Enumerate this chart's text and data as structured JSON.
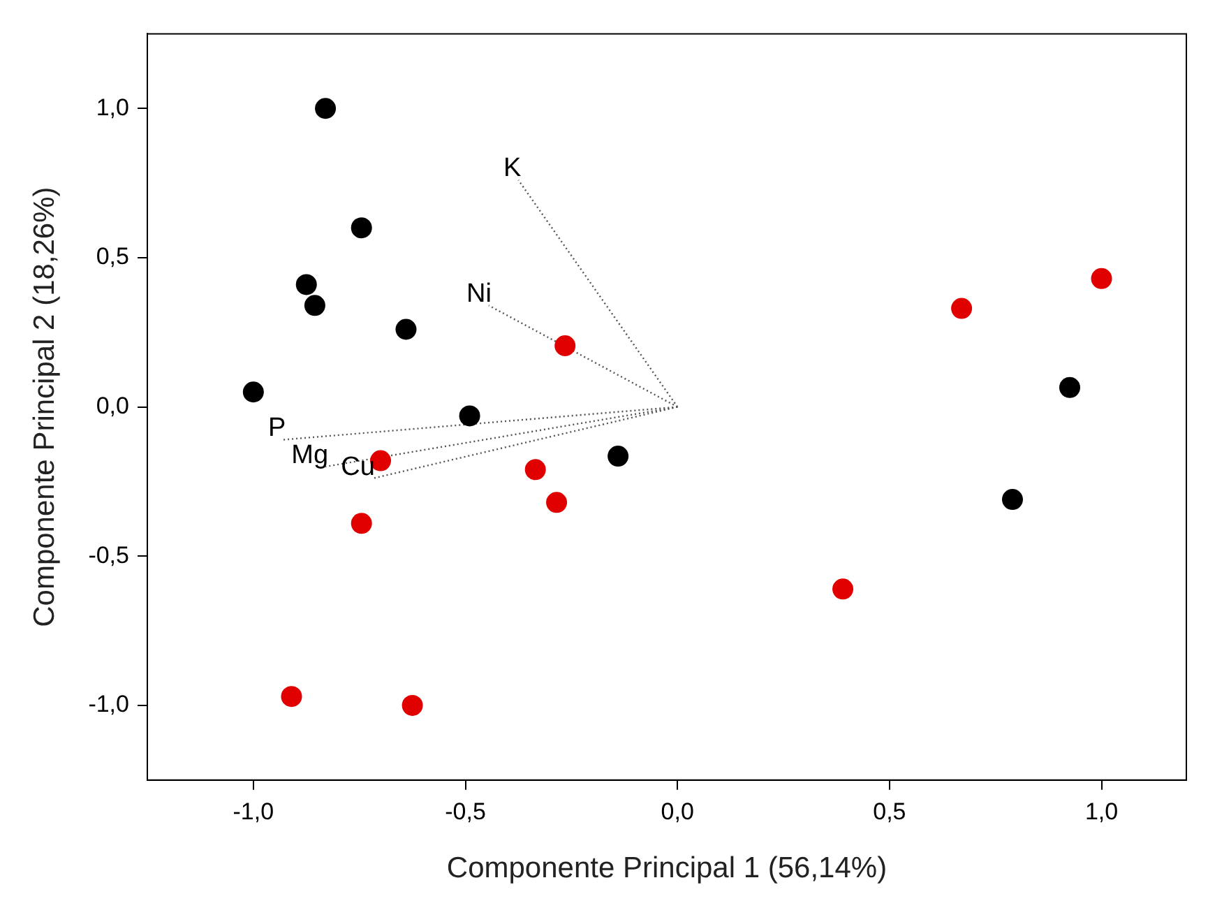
{
  "chart_data": {
    "type": "scatter",
    "xlabel": "Componente Principal 1 (56,14%)",
    "ylabel": "Componente Principal 2 (18,26%)",
    "xlim": [
      -1.25,
      1.2
    ],
    "ylim": [
      -1.25,
      1.25
    ],
    "xticks": [
      {
        "value": -1,
        "label": "-1,0"
      },
      {
        "value": -0.5,
        "label": "-0,5"
      },
      {
        "value": 0,
        "label": "0,0"
      },
      {
        "value": 0.5,
        "label": "0,5"
      },
      {
        "value": 1,
        "label": "1,0"
      }
    ],
    "yticks": [
      {
        "value": -1,
        "label": "-1,0"
      },
      {
        "value": -0.5,
        "label": "-0,5"
      },
      {
        "value": 0,
        "label": "0,0"
      },
      {
        "value": 0.5,
        "label": "0,5"
      },
      {
        "value": 1,
        "label": "1,0"
      }
    ],
    "grid": false,
    "marker": "circle",
    "series": [
      {
        "color": "#000000",
        "x": [
          -0.83,
          -0.745,
          -0.875,
          -0.855,
          -0.64,
          -1.0,
          -0.49,
          -0.14,
          0.925,
          0.79
        ],
        "values": [
          1.0,
          0.6,
          0.41,
          0.34,
          0.26,
          0.05,
          -0.03,
          -0.165,
          0.065,
          -0.31
        ]
      },
      {
        "color": "#e00000",
        "x": [
          -0.265,
          -0.7,
          -0.335,
          -0.285,
          -0.745,
          -0.91,
          -0.625,
          0.67,
          1.0,
          0.39
        ],
        "values": [
          0.205,
          -0.18,
          -0.21,
          -0.32,
          -0.39,
          -0.97,
          -1.0,
          0.33,
          0.43,
          -0.61
        ]
      },
      {
        "type": "line",
        "name": "K",
        "color": "#555555",
        "line_style": "dotted",
        "marker": "none",
        "x": [
          0,
          -0.375
        ],
        "values": [
          0,
          0.76
        ]
      },
      {
        "type": "line",
        "name": "Ni",
        "color": "#555555",
        "line_style": "dotted",
        "marker": "none",
        "x": [
          0,
          -0.445
        ],
        "values": [
          0,
          0.34
        ]
      },
      {
        "type": "line",
        "name": "P",
        "color": "#555555",
        "line_style": "dotted",
        "marker": "none",
        "x": [
          0,
          -0.93
        ],
        "values": [
          0,
          -0.11
        ]
      },
      {
        "type": "line",
        "name": "Mg",
        "color": "#555555",
        "line_style": "dotted",
        "marker": "none",
        "x": [
          0,
          -0.83
        ],
        "values": [
          0,
          -0.2
        ]
      },
      {
        "type": "line",
        "name": "Cu",
        "color": "#555555",
        "line_style": "dotted",
        "marker": "none",
        "x": [
          0,
          -0.72
        ],
        "values": [
          0,
          -0.24
        ]
      }
    ]
  }
}
